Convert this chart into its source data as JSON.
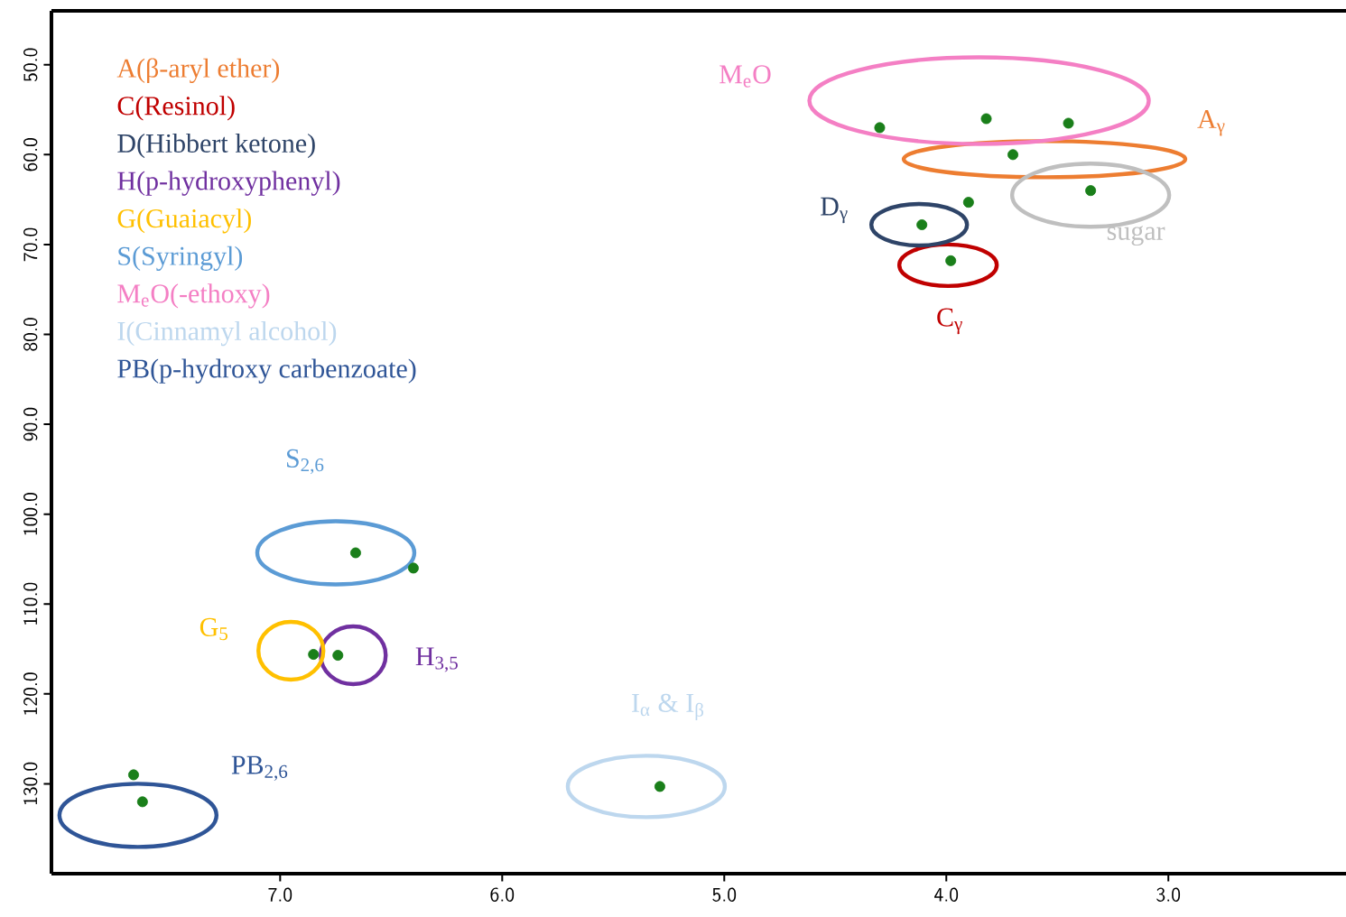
{
  "chart_data": {
    "type": "scatter",
    "xlim": [
      8.03,
      2.2
    ],
    "ylim": [
      140,
      44
    ],
    "xticks": [
      {
        "value": 7,
        "label": "7.0"
      },
      {
        "value": 6,
        "label": "6.0"
      },
      {
        "value": 5,
        "label": "5.0"
      },
      {
        "value": 4,
        "label": "4.0"
      },
      {
        "value": 3,
        "label": "3.0"
      }
    ],
    "yticks": [
      {
        "value": 50,
        "label": "50.0"
      },
      {
        "value": 60,
        "label": "60.0"
      },
      {
        "value": 70,
        "label": "70.0"
      },
      {
        "value": 80,
        "label": "80.0"
      },
      {
        "value": 90,
        "label": "90.0"
      },
      {
        "value": 100,
        "label": "100.0"
      },
      {
        "value": 110,
        "label": "110.0"
      },
      {
        "value": 120,
        "label": "120.0"
      },
      {
        "value": 130,
        "label": "130.0"
      }
    ],
    "marker": "circle",
    "series": [
      {
        "color": "#1a7f1a",
        "x": [
          3.82,
          4.3,
          3.45,
          3.7,
          3.35,
          3.9,
          4.11,
          3.98,
          6.66,
          6.4,
          6.74,
          6.85,
          5.29,
          7.62,
          7.66
        ],
        "values": [
          56.0,
          57.0,
          56.5,
          60.0,
          64.0,
          65.3,
          67.8,
          71.8,
          104.3,
          106.0,
          115.7,
          115.6,
          130.3,
          132.0,
          129.0
        ]
      }
    ],
    "annotations": [
      "A(β-aryl ether)",
      "C(Resinol)",
      "D(Hibbert ketone)",
      "H(p-hydroxyphenyl)",
      "G(Guaiacyl)",
      "S(Syringyl)",
      "M$_{e}$O(-ethoxy)",
      "I(Cinnamyl alcohol)",
      "PB(p-hydroxy carbenzoate)",
      "M$_{e}$O",
      "A$_{γ}$",
      "D$_{γ}$",
      "sugar",
      "C$_{γ}$",
      "S$_{2,6}$",
      "G$_{5}$",
      "H$_{3,5}$",
      "I$_{α}$ & I$_{β}$",
      "PB$_{2,6}$"
    ]
  }
}
